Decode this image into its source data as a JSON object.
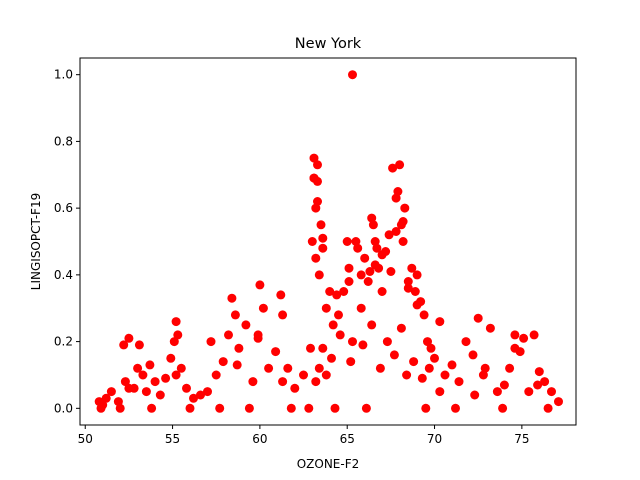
{
  "chart_data": {
    "type": "scatter",
    "title": "New York",
    "xlabel": "OZONE-F2",
    "ylabel": "LINGISOPCT-F19",
    "xlim": [
      49.7,
      78.1
    ],
    "ylim": [
      -0.05,
      1.05
    ],
    "xticks": [
      50,
      55,
      60,
      65,
      70,
      75
    ],
    "yticks": [
      0.0,
      0.2,
      0.4,
      0.6,
      0.8,
      1.0
    ],
    "xtick_labels": [
      "50",
      "55",
      "60",
      "65",
      "70",
      "75"
    ],
    "ytick_labels": [
      "0.0",
      "0.2",
      "0.4",
      "0.6",
      "0.8",
      "1.0"
    ],
    "grid": false,
    "marker_color": "#ff0000",
    "x": [
      50.8,
      51.0,
      51.2,
      51.5,
      51.9,
      52.2,
      52.3,
      52.5,
      52.8,
      53.0,
      53.1,
      53.3,
      53.5,
      53.7,
      54.0,
      54.3,
      54.6,
      54.9,
      55.1,
      55.2,
      55.3,
      55.5,
      55.8,
      56.2,
      56.6,
      57.0,
      57.2,
      57.5,
      57.9,
      58.2,
      58.4,
      58.6,
      58.8,
      59.2,
      59.6,
      59.9,
      60.0,
      60.2,
      60.5,
      60.9,
      61.2,
      61.3,
      61.6,
      62.0,
      62.5,
      62.9,
      63.0,
      63.1,
      63.1,
      63.2,
      63.2,
      63.3,
      63.3,
      63.4,
      63.5,
      63.6,
      63.8,
      64.0,
      64.2,
      64.5,
      64.8,
      65.0,
      65.1,
      65.3,
      65.5,
      65.6,
      65.8,
      66.0,
      66.2,
      66.4,
      66.5,
      66.6,
      66.7,
      66.8,
      67.0,
      67.2,
      67.4,
      67.6,
      67.8,
      67.9,
      68.0,
      68.1,
      68.2,
      68.3,
      68.5,
      68.7,
      68.9,
      69.0,
      69.2,
      69.4,
      69.6,
      69.8,
      70.0,
      70.3,
      70.6,
      71.0,
      71.4,
      71.8,
      72.2,
      72.5,
      72.8,
      73.2,
      73.6,
      74.0,
      74.3,
      74.6,
      74.9,
      75.1,
      75.4,
      75.7,
      76.0,
      76.3,
      76.7,
      77.1,
      65.3,
      63.1,
      63.3,
      67.8,
      68.2,
      66.6,
      63.6,
      64.4,
      65.1,
      65.8,
      66.3,
      67.0,
      67.5,
      68.5,
      69.0,
      59.9,
      61.3,
      55.2,
      52.5,
      58.7,
      72.3,
      75.9,
      70.3,
      72.9,
      74.6,
      63.2,
      63.4,
      63.6,
      63.8,
      64.1,
      64.6,
      65.2,
      65.9,
      66.4,
      66.9,
      67.3,
      67.7,
      68.1,
      68.4,
      68.8,
      69.3,
      69.7,
      50.9,
      52.0,
      53.8,
      56.0,
      57.7,
      59.4,
      61.8,
      62.8,
      64.3,
      66.1,
      69.5,
      71.2,
      73.9,
      76.5
    ],
    "y": [
      0.02,
      0.01,
      0.03,
      0.05,
      0.02,
      0.19,
      0.08,
      0.21,
      0.06,
      0.12,
      0.19,
      0.1,
      0.05,
      0.13,
      0.08,
      0.04,
      0.09,
      0.15,
      0.2,
      0.26,
      0.22,
      0.12,
      0.06,
      0.03,
      0.04,
      0.05,
      0.2,
      0.1,
      0.14,
      0.22,
      0.33,
      0.28,
      0.18,
      0.25,
      0.08,
      0.21,
      0.37,
      0.3,
      0.12,
      0.17,
      0.34,
      0.28,
      0.12,
      0.06,
      0.1,
      0.18,
      0.5,
      0.75,
      0.69,
      0.6,
      0.45,
      0.73,
      0.62,
      0.4,
      0.55,
      0.48,
      0.3,
      0.35,
      0.25,
      0.28,
      0.35,
      0.5,
      0.42,
      0.2,
      0.5,
      0.48,
      0.4,
      0.45,
      0.38,
      0.57,
      0.55,
      0.5,
      0.48,
      0.42,
      0.35,
      0.47,
      0.52,
      0.72,
      0.63,
      0.65,
      0.73,
      0.55,
      0.5,
      0.6,
      0.38,
      0.42,
      0.35,
      0.4,
      0.32,
      0.28,
      0.2,
      0.18,
      0.15,
      0.26,
      0.1,
      0.13,
      0.08,
      0.2,
      0.16,
      0.27,
      0.1,
      0.24,
      0.05,
      0.07,
      0.12,
      0.22,
      0.17,
      0.21,
      0.05,
      0.22,
      0.11,
      0.08,
      0.05,
      0.02,
      1.0,
      0.69,
      0.68,
      0.53,
      0.56,
      0.43,
      0.51,
      0.34,
      0.38,
      0.3,
      0.41,
      0.46,
      0.41,
      0.36,
      0.31,
      0.22,
      0.08,
      0.1,
      0.06,
      0.13,
      0.04,
      0.07,
      0.05,
      0.12,
      0.18,
      0.08,
      0.12,
      0.18,
      0.1,
      0.15,
      0.22,
      0.14,
      0.19,
      0.25,
      0.12,
      0.2,
      0.16,
      0.24,
      0.1,
      0.14,
      0.09,
      0.12,
      0.0,
      0.0,
      0.0,
      0.0,
      0.0,
      0.0,
      0.0,
      0.0,
      0.0,
      0.0,
      0.0,
      0.0,
      0.0,
      0.0
    ]
  }
}
